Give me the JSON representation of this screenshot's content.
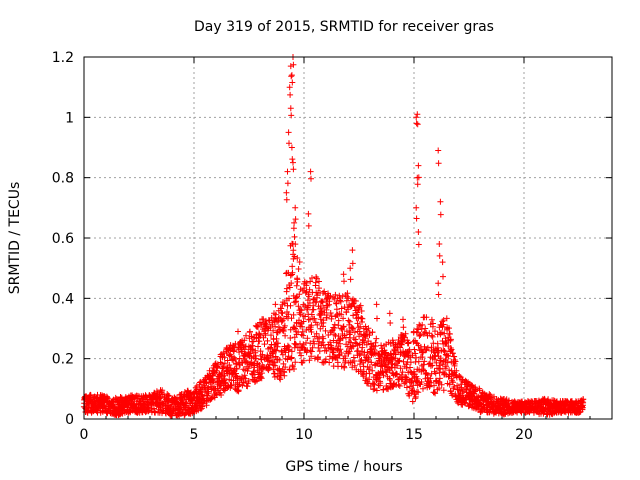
{
  "chart_data": {
    "type": "scatter",
    "title": "Day 319 of 2015, SRMTID for receiver gras",
    "xlabel": "GPS time / hours",
    "ylabel": "SRMTID / TECUs",
    "xlim": [
      0,
      24
    ],
    "ylim": [
      0,
      1.2
    ],
    "grid": true,
    "marker": "+",
    "marker_color": "#ff0000",
    "x_ticks": [
      0,
      5,
      10,
      15,
      20
    ],
    "y_ticks": [
      0,
      0.2,
      0.4,
      0.6,
      0.8,
      1,
      1.2
    ],
    "x_tick_labels": [
      "0",
      "5",
      "10",
      "15",
      "20"
    ],
    "y_tick_labels": [
      "0",
      "0.2",
      "0.4",
      "0.6",
      "0.8",
      "1",
      "1.2"
    ],
    "envelope": [
      [
        0.0,
        0.05,
        0.03
      ],
      [
        0.5,
        0.05,
        0.03
      ],
      [
        1.0,
        0.05,
        0.03
      ],
      [
        1.5,
        0.04,
        0.03
      ],
      [
        2.0,
        0.05,
        0.03
      ],
      [
        2.5,
        0.05,
        0.03
      ],
      [
        3.0,
        0.05,
        0.03
      ],
      [
        3.5,
        0.06,
        0.04
      ],
      [
        4.0,
        0.04,
        0.03
      ],
      [
        4.5,
        0.05,
        0.04
      ],
      [
        5.0,
        0.06,
        0.04
      ],
      [
        5.5,
        0.09,
        0.05
      ],
      [
        6.0,
        0.13,
        0.06
      ],
      [
        6.5,
        0.17,
        0.08
      ],
      [
        7.0,
        0.17,
        0.08
      ],
      [
        7.5,
        0.2,
        0.09
      ],
      [
        8.0,
        0.23,
        0.1
      ],
      [
        8.5,
        0.24,
        0.1
      ],
      [
        9.0,
        0.25,
        0.13
      ],
      [
        9.5,
        0.4,
        0.25
      ],
      [
        10.0,
        0.32,
        0.14
      ],
      [
        10.5,
        0.34,
        0.14
      ],
      [
        11.0,
        0.3,
        0.12
      ],
      [
        11.5,
        0.29,
        0.12
      ],
      [
        12.0,
        0.3,
        0.13
      ],
      [
        12.5,
        0.27,
        0.12
      ],
      [
        13.0,
        0.2,
        0.1
      ],
      [
        13.5,
        0.17,
        0.08
      ],
      [
        14.0,
        0.18,
        0.08
      ],
      [
        14.5,
        0.2,
        0.09
      ],
      [
        15.0,
        0.17,
        0.12
      ],
      [
        15.5,
        0.23,
        0.12
      ],
      [
        16.0,
        0.2,
        0.12
      ],
      [
        16.5,
        0.22,
        0.12
      ],
      [
        17.0,
        0.1,
        0.05
      ],
      [
        17.5,
        0.08,
        0.04
      ],
      [
        18.0,
        0.06,
        0.04
      ],
      [
        18.5,
        0.05,
        0.03
      ],
      [
        19.0,
        0.04,
        0.03
      ],
      [
        19.5,
        0.04,
        0.02
      ],
      [
        20.0,
        0.04,
        0.02
      ],
      [
        20.5,
        0.04,
        0.02
      ],
      [
        21.0,
        0.04,
        0.03
      ],
      [
        21.5,
        0.04,
        0.02
      ],
      [
        22.0,
        0.04,
        0.02
      ],
      [
        22.5,
        0.04,
        0.02
      ],
      [
        22.7,
        0.05,
        0.02
      ]
    ],
    "highlights": [
      [
        9.2,
        0.75
      ],
      [
        9.25,
        0.82
      ],
      [
        9.3,
        0.95
      ],
      [
        9.35,
        1.1
      ],
      [
        9.4,
        1.17
      ],
      [
        9.45,
        1.14
      ],
      [
        9.5,
        1.2
      ],
      [
        9.4,
        1.03
      ],
      [
        9.45,
        0.9
      ],
      [
        9.5,
        0.85
      ],
      [
        9.55,
        0.65
      ],
      [
        9.5,
        0.58
      ],
      [
        9.6,
        0.7
      ],
      [
        10.3,
        0.82
      ],
      [
        10.2,
        0.68
      ],
      [
        15.1,
        1.0
      ],
      [
        15.15,
        1.01
      ],
      [
        15.2,
        0.84
      ],
      [
        15.15,
        0.8
      ],
      [
        15.1,
        0.7
      ],
      [
        15.2,
        0.62
      ],
      [
        16.1,
        0.89
      ],
      [
        16.2,
        0.72
      ],
      [
        16.15,
        0.58
      ],
      [
        16.3,
        0.52
      ],
      [
        16.1,
        0.45
      ],
      [
        12.2,
        0.56
      ],
      [
        11.8,
        0.48
      ],
      [
        12.1,
        0.5
      ],
      [
        7.0,
        0.29
      ],
      [
        8.0,
        0.32
      ],
      [
        8.7,
        0.38
      ],
      [
        13.3,
        0.38
      ],
      [
        13.9,
        0.35
      ],
      [
        14.5,
        0.33
      ]
    ]
  }
}
